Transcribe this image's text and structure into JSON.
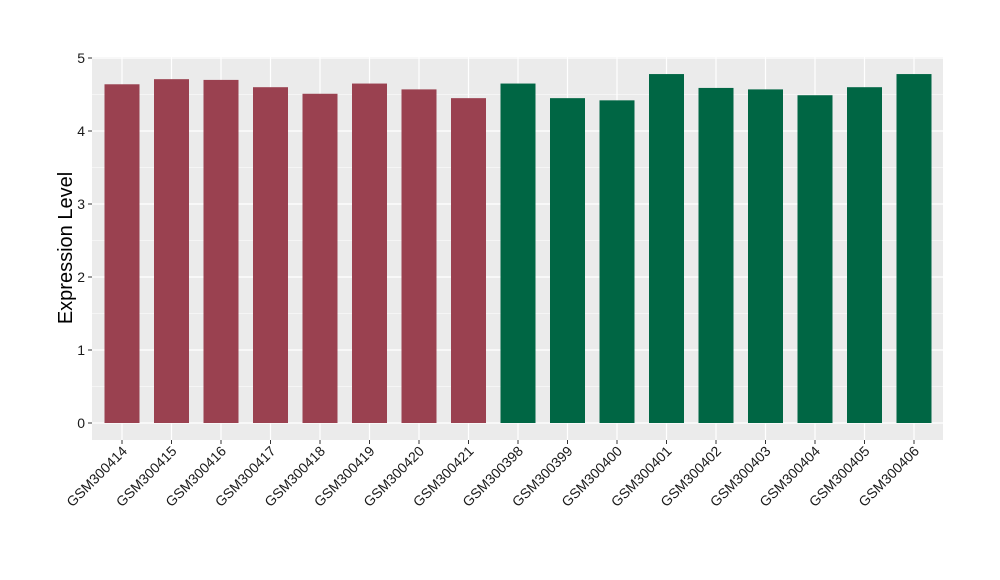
{
  "chart_data": {
    "type": "bar",
    "title": "",
    "xlabel": "",
    "ylabel": "Expression Level",
    "ylim": [
      0,
      5
    ],
    "yticks": [
      0,
      1,
      2,
      3,
      4,
      5
    ],
    "grid": true,
    "legend": "none",
    "panel_background": "#ebebeb",
    "gridline_color": "#ffffff",
    "categories": [
      "GSM300414",
      "GSM300415",
      "GSM300416",
      "GSM300417",
      "GSM300418",
      "GSM300419",
      "GSM300420",
      "GSM300421",
      "GSM300398",
      "GSM300399",
      "GSM300400",
      "GSM300401",
      "GSM300402",
      "GSM300403",
      "GSM300404",
      "GSM300405",
      "GSM300406"
    ],
    "values": [
      4.64,
      4.71,
      4.7,
      4.6,
      4.51,
      4.65,
      4.57,
      4.45,
      4.65,
      4.45,
      4.42,
      4.78,
      4.59,
      4.57,
      4.49,
      4.6,
      4.78
    ],
    "colors": [
      "#9a4150",
      "#9a4150",
      "#9a4150",
      "#9a4150",
      "#9a4150",
      "#9a4150",
      "#9a4150",
      "#9a4150",
      "#006644",
      "#006644",
      "#006644",
      "#006644",
      "#006644",
      "#006644",
      "#006644",
      "#006644",
      "#006644"
    ]
  }
}
